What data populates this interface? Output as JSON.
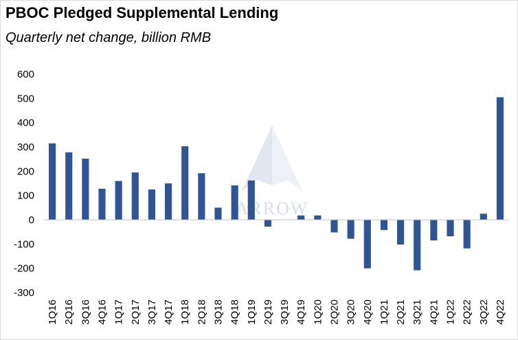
{
  "chart_data": {
    "type": "bar",
    "title": "PBOC Pledged Supplemental Lending",
    "subtitle": "Quarterly net change, billion RMB",
    "xlabel": "",
    "ylabel": "",
    "ylim": [
      -300,
      600
    ],
    "yticks": [
      600,
      500,
      400,
      300,
      200,
      100,
      0,
      -100,
      -200,
      -300
    ],
    "categories": [
      "1Q16",
      "2Q16",
      "3Q16",
      "4Q16",
      "1Q17",
      "2Q17",
      "3Q17",
      "4Q17",
      "1Q18",
      "2Q18",
      "3Q18",
      "4Q18",
      "1Q19",
      "2Q19",
      "3Q19",
      "4Q19",
      "1Q20",
      "2Q20",
      "3Q20",
      "4Q20",
      "1Q21",
      "2Q21",
      "3Q21",
      "4Q21",
      "1Q22",
      "2Q22",
      "3Q22",
      "4Q22"
    ],
    "values": [
      315,
      278,
      252,
      128,
      160,
      195,
      125,
      150,
      303,
      192,
      50,
      142,
      162,
      -28,
      0,
      18,
      18,
      -52,
      -78,
      -200,
      -42,
      -102,
      -208,
      -85,
      -68,
      -118,
      25,
      505
    ],
    "bar_color": "#2f5597",
    "grid": false,
    "legend": "none"
  },
  "watermark": {
    "text": "ARROW"
  }
}
